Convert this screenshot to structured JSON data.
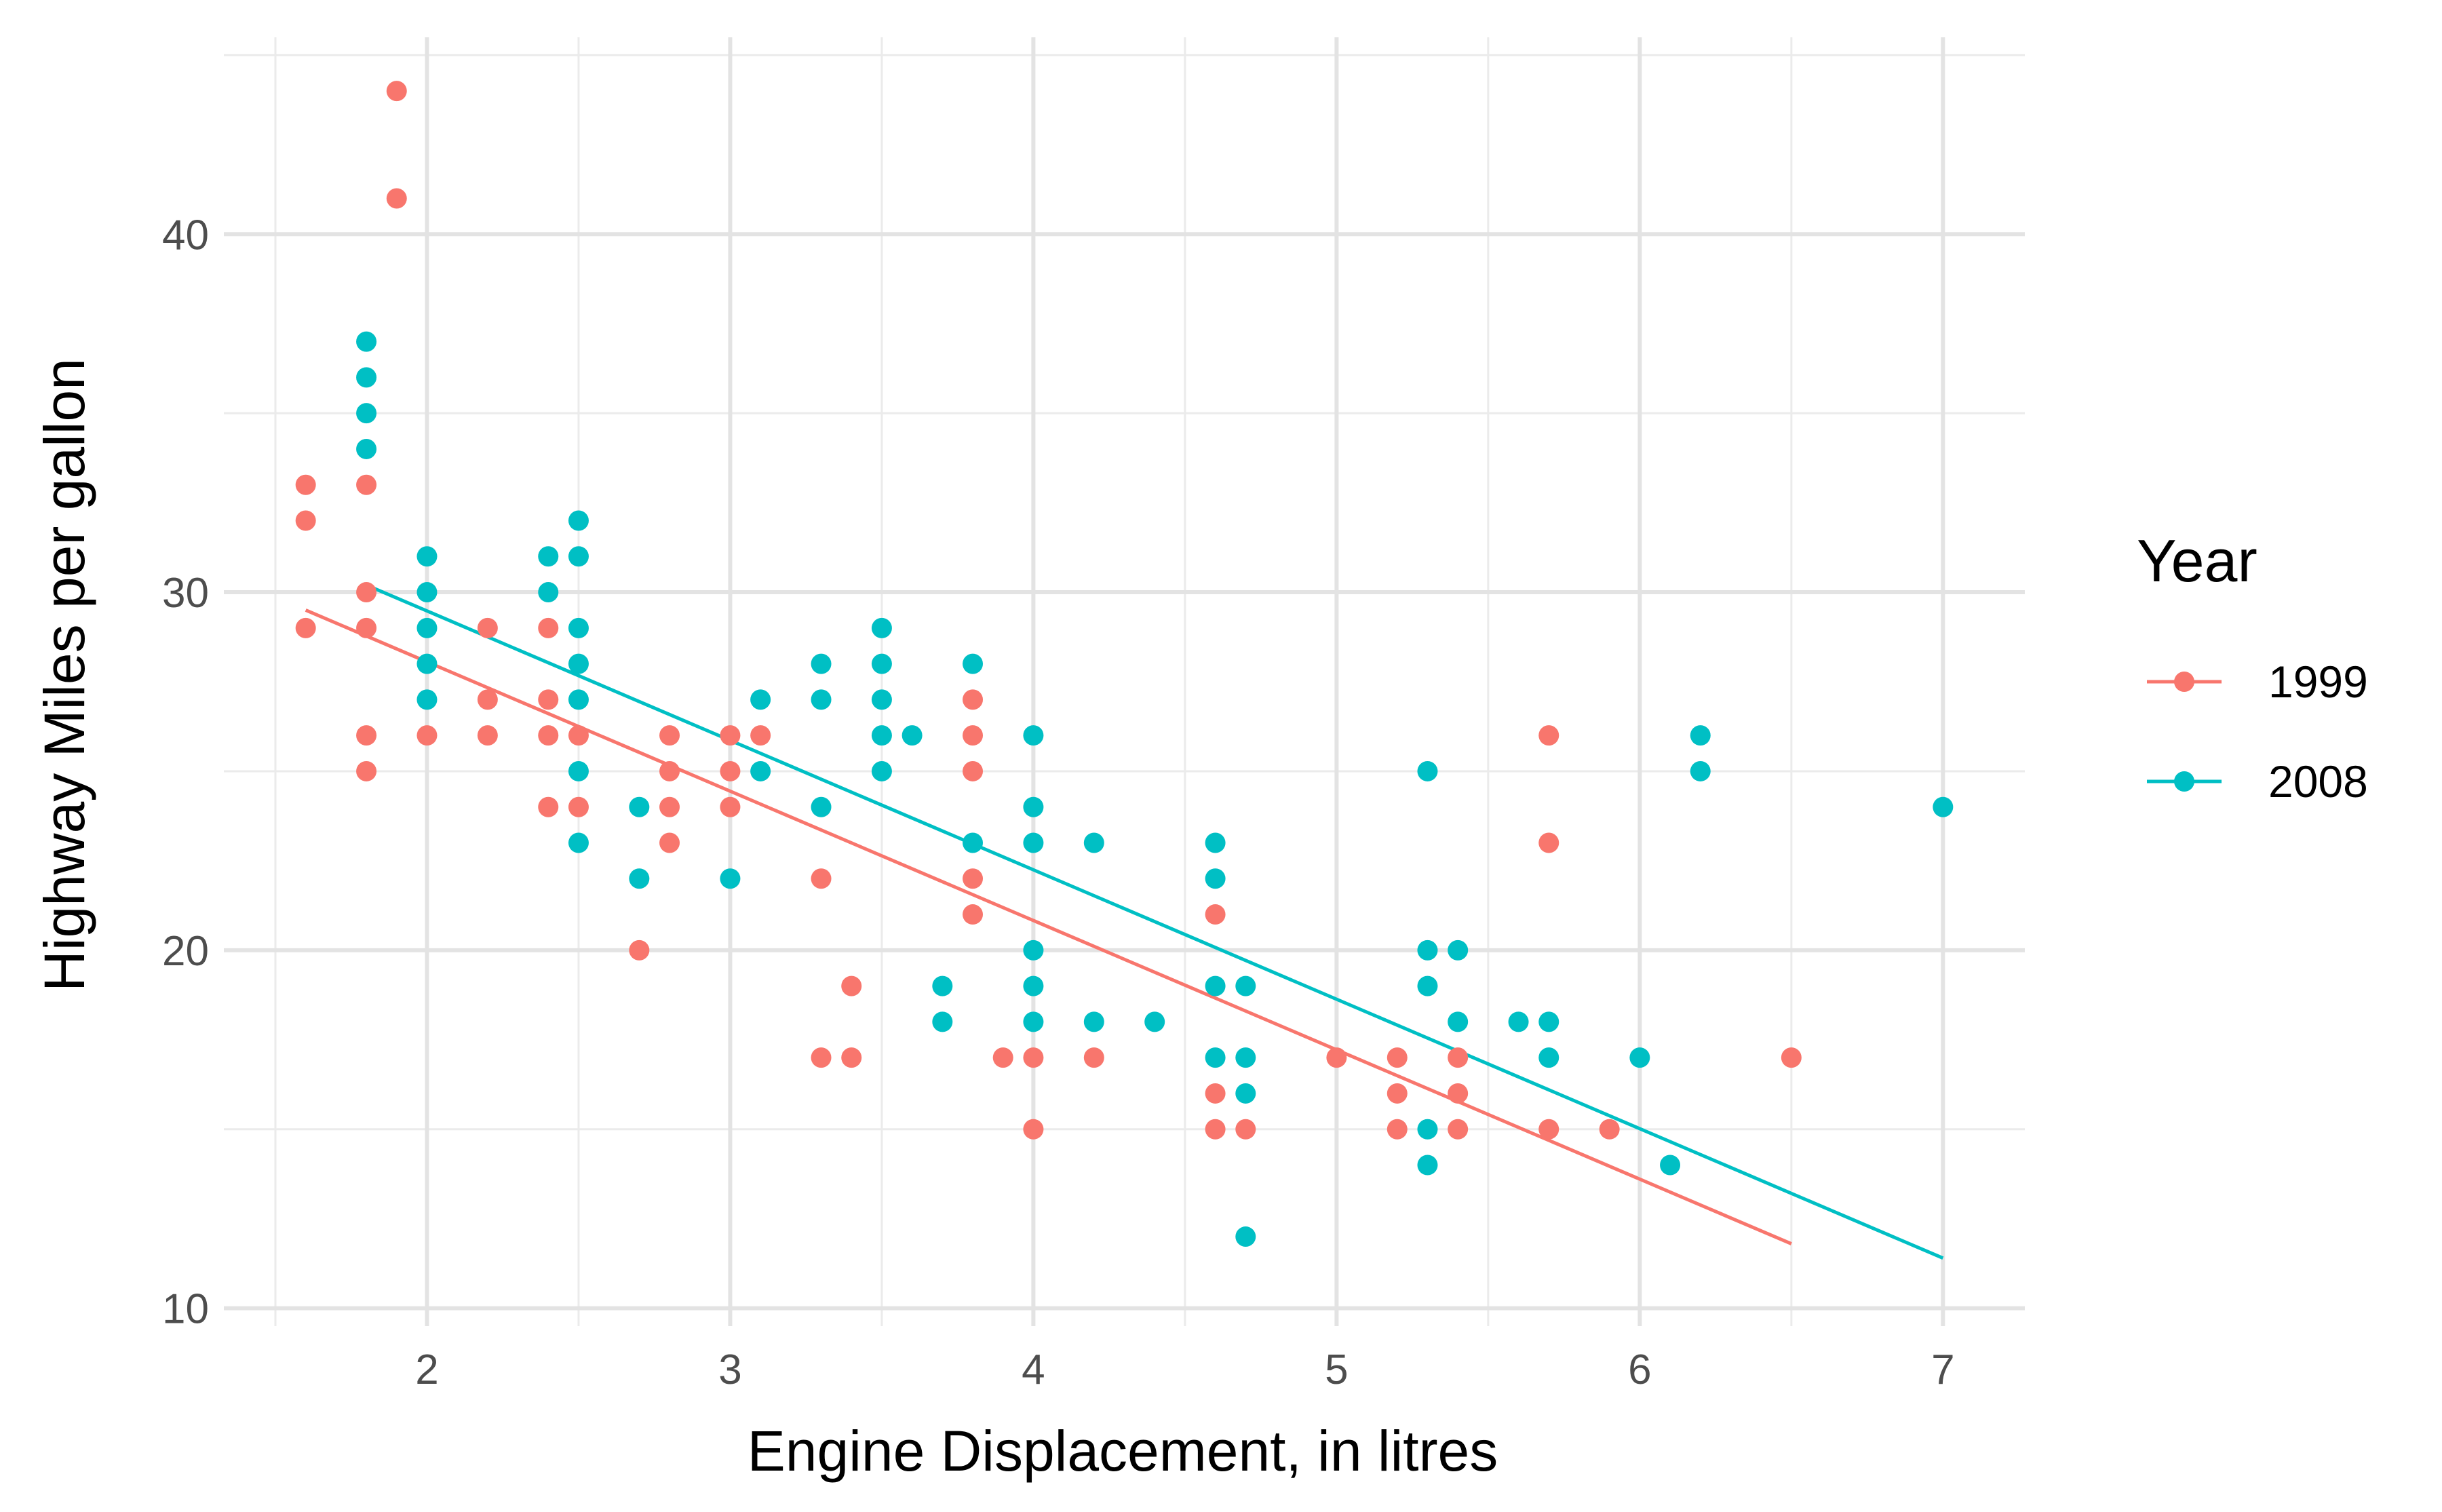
{
  "chart_data": {
    "type": "scatter",
    "xlabel": "Engine Displacement, in litres",
    "ylabel": "Highway Miles per gallon",
    "xlim": [
      1.33,
      7.27
    ],
    "ylim": [
      9.5,
      45.5
    ],
    "x_ticks": [
      2,
      3,
      4,
      5,
      6,
      7
    ],
    "y_ticks": [
      10,
      20,
      30,
      40
    ],
    "grid": true,
    "legend_position": "right",
    "legend": {
      "title": "Year",
      "entries": [
        {
          "label": "1999",
          "color": "#F8766D"
        },
        {
          "label": "2008",
          "color": "#00BFC4"
        }
      ]
    },
    "series": [
      {
        "name": "1999",
        "color": "#F8766D",
        "points": [
          [
            1.6,
            33
          ],
          [
            1.6,
            32
          ],
          [
            1.6,
            29
          ],
          [
            1.8,
            33
          ],
          [
            1.8,
            30
          ],
          [
            1.8,
            29
          ],
          [
            1.8,
            26
          ],
          [
            1.8,
            25
          ],
          [
            1.9,
            44
          ],
          [
            1.9,
            41
          ],
          [
            2.0,
            26
          ],
          [
            2.2,
            29
          ],
          [
            2.2,
            27
          ],
          [
            2.2,
            26
          ],
          [
            2.4,
            29
          ],
          [
            2.4,
            27
          ],
          [
            2.4,
            26
          ],
          [
            2.4,
            24
          ],
          [
            2.5,
            26
          ],
          [
            2.5,
            24
          ],
          [
            2.7,
            20
          ],
          [
            2.8,
            26
          ],
          [
            2.8,
            25
          ],
          [
            2.8,
            24
          ],
          [
            2.8,
            23
          ],
          [
            3.0,
            26
          ],
          [
            3.0,
            25
          ],
          [
            3.0,
            24
          ],
          [
            3.1,
            26
          ],
          [
            3.3,
            22
          ],
          [
            3.3,
            17
          ],
          [
            3.4,
            19
          ],
          [
            3.4,
            17
          ],
          [
            3.8,
            27
          ],
          [
            3.8,
            26
          ],
          [
            3.8,
            25
          ],
          [
            3.8,
            22
          ],
          [
            3.8,
            21
          ],
          [
            3.9,
            17
          ],
          [
            4.0,
            17
          ],
          [
            4.0,
            15
          ],
          [
            4.2,
            17
          ],
          [
            4.6,
            21
          ],
          [
            4.6,
            16
          ],
          [
            4.6,
            15
          ],
          [
            4.7,
            15
          ],
          [
            5.0,
            17
          ],
          [
            5.2,
            17
          ],
          [
            5.2,
            16
          ],
          [
            5.2,
            15
          ],
          [
            5.4,
            17
          ],
          [
            5.4,
            16
          ],
          [
            5.4,
            15
          ],
          [
            5.7,
            26
          ],
          [
            5.7,
            23
          ],
          [
            5.7,
            15
          ],
          [
            5.9,
            15
          ],
          [
            6.5,
            17
          ]
        ],
        "fit": {
          "x": [
            1.6,
            6.5
          ],
          "y": [
            29.5,
            11.8
          ]
        }
      },
      {
        "name": "2008",
        "color": "#00BFC4",
        "points": [
          [
            1.8,
            37
          ],
          [
            1.8,
            36
          ],
          [
            1.8,
            35
          ],
          [
            1.8,
            34
          ],
          [
            2.0,
            31
          ],
          [
            2.0,
            30
          ],
          [
            2.0,
            29
          ],
          [
            2.0,
            28
          ],
          [
            2.0,
            27
          ],
          [
            2.4,
            31
          ],
          [
            2.4,
            30
          ],
          [
            2.5,
            32
          ],
          [
            2.5,
            31
          ],
          [
            2.5,
            29
          ],
          [
            2.5,
            28
          ],
          [
            2.5,
            27
          ],
          [
            2.5,
            25
          ],
          [
            2.5,
            23
          ],
          [
            2.7,
            24
          ],
          [
            2.7,
            22
          ],
          [
            3.0,
            22
          ],
          [
            3.1,
            27
          ],
          [
            3.1,
            25
          ],
          [
            3.3,
            28
          ],
          [
            3.3,
            27
          ],
          [
            3.3,
            24
          ],
          [
            3.5,
            29
          ],
          [
            3.5,
            28
          ],
          [
            3.5,
            27
          ],
          [
            3.5,
            26
          ],
          [
            3.5,
            25
          ],
          [
            3.6,
            26
          ],
          [
            3.7,
            19
          ],
          [
            3.7,
            18
          ],
          [
            3.8,
            28
          ],
          [
            3.8,
            23
          ],
          [
            4.0,
            26
          ],
          [
            4.0,
            24
          ],
          [
            4.0,
            23
          ],
          [
            4.0,
            20
          ],
          [
            4.0,
            19
          ],
          [
            4.0,
            18
          ],
          [
            4.2,
            23
          ],
          [
            4.2,
            18
          ],
          [
            4.4,
            18
          ],
          [
            4.6,
            23
          ],
          [
            4.6,
            22
          ],
          [
            4.6,
            19
          ],
          [
            4.6,
            17
          ],
          [
            4.7,
            19
          ],
          [
            4.7,
            17
          ],
          [
            4.7,
            16
          ],
          [
            4.7,
            12
          ],
          [
            5.3,
            25
          ],
          [
            5.3,
            20
          ],
          [
            5.3,
            19
          ],
          [
            5.3,
            15
          ],
          [
            5.3,
            14
          ],
          [
            5.4,
            20
          ],
          [
            5.4,
            18
          ],
          [
            5.6,
            18
          ],
          [
            5.7,
            18
          ],
          [
            5.7,
            17
          ],
          [
            6.0,
            17
          ],
          [
            6.1,
            14
          ],
          [
            6.2,
            26
          ],
          [
            6.2,
            25
          ],
          [
            7.0,
            24
          ]
        ],
        "fit": {
          "x": [
            1.8,
            7.0
          ],
          "y": [
            30.2,
            11.4
          ]
        }
      }
    ]
  }
}
